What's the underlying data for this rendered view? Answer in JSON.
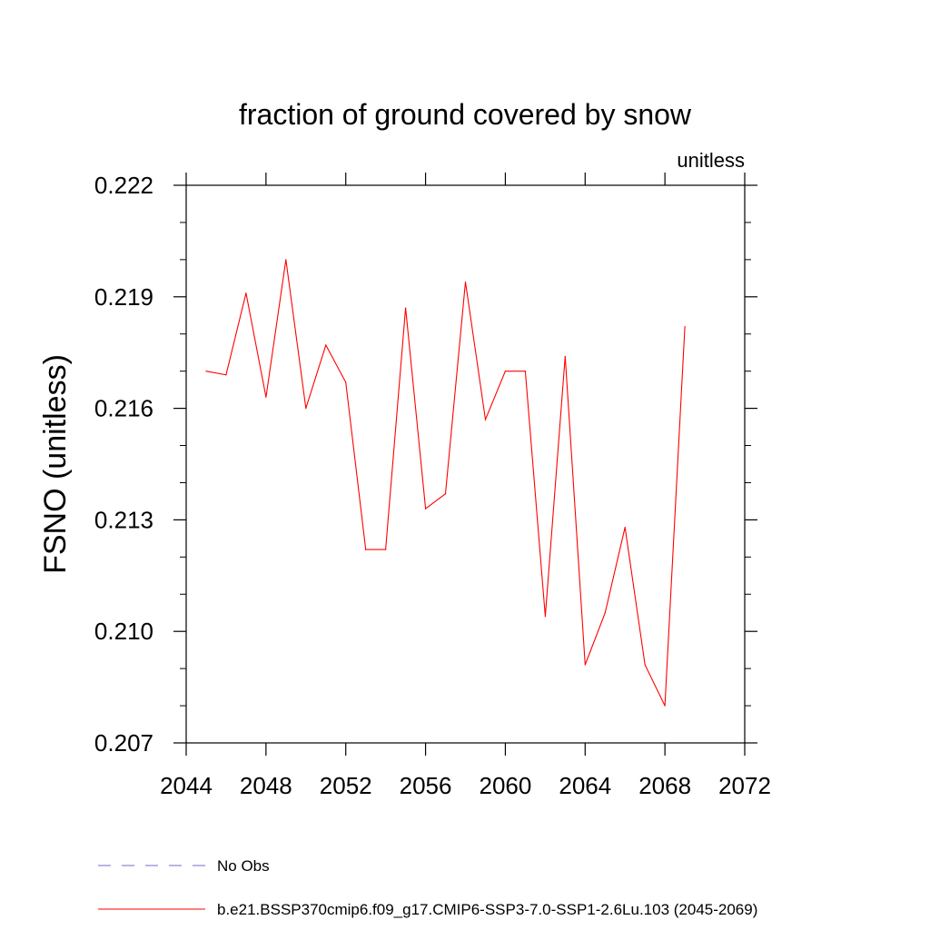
{
  "chart_data": {
    "type": "line",
    "title": "fraction of ground covered by snow",
    "units_label": "unitless",
    "xlabel": "",
    "ylabel": "FSNO  (unitless)",
    "xlim": [
      2044,
      2072
    ],
    "ylim": [
      0.207,
      0.222
    ],
    "x_ticks": [
      2044,
      2048,
      2052,
      2056,
      2060,
      2064,
      2068,
      2072
    ],
    "x_tick_labels": [
      "2044",
      "2048",
      "2052",
      "2056",
      "2060",
      "2064",
      "2068",
      "2072"
    ],
    "y_ticks": [
      0.207,
      0.21,
      0.213,
      0.216,
      0.219,
      0.222
    ],
    "y_tick_labels": [
      "0.207",
      "0.210",
      "0.213",
      "0.216",
      "0.219",
      "0.222"
    ],
    "series": [
      {
        "name": "b.e21.BSSP370cmip6.f09_g17.CMIP6-SSP3-7.0-SSP1-2.6Lu.103 (2045-2069)",
        "color": "#ff0000",
        "style": "solid",
        "x": [
          2045,
          2046,
          2047,
          2048,
          2049,
          2050,
          2051,
          2052,
          2053,
          2054,
          2055,
          2056,
          2057,
          2058,
          2059,
          2060,
          2061,
          2062,
          2063,
          2064,
          2065,
          2066,
          2067,
          2068,
          2069
        ],
        "values": [
          0.217,
          0.2169,
          0.2191,
          0.2163,
          0.22,
          0.216,
          0.2177,
          0.2167,
          0.2122,
          0.2122,
          0.2187,
          0.2133,
          0.2137,
          0.2194,
          0.2157,
          0.217,
          0.217,
          0.2104,
          0.2174,
          0.2091,
          0.2105,
          0.2128,
          0.2091,
          0.208,
          0.2182
        ]
      }
    ],
    "legend": [
      {
        "label": "No Obs",
        "color": "#7b68c8",
        "style": "dashed"
      },
      {
        "label": "b.e21.BSSP370cmip6.f09_g17.CMIP6-SSP3-7.0-SSP1-2.6Lu.103 (2045-2069)",
        "color": "#ff0000",
        "style": "solid"
      }
    ],
    "legend_position": "bottom-left",
    "grid": false
  }
}
